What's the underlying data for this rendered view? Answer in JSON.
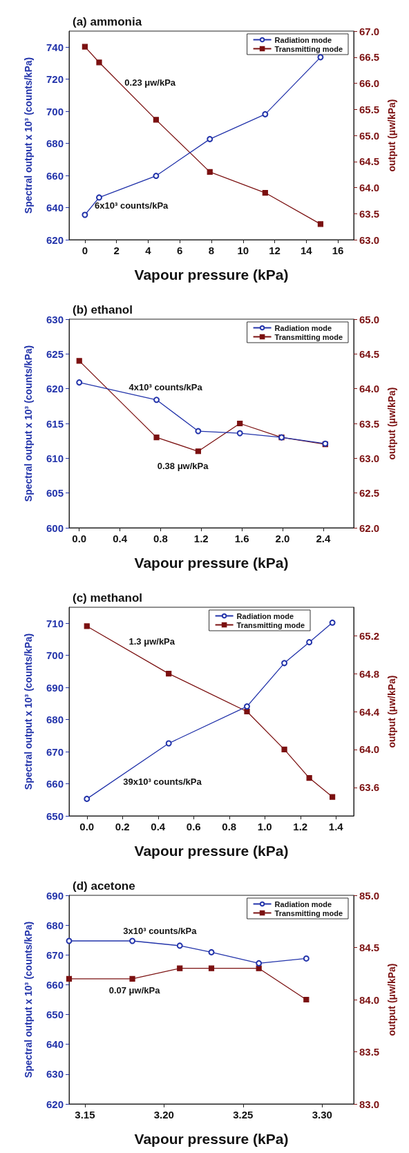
{
  "chart_data": [
    {
      "type": "line",
      "title": "(a) ammonia",
      "xlabel": "Vapour pressure (kPa)",
      "ylabel": "Spectral output x 10³ (counts/kPa)",
      "y2label": "output (μw/kPa)",
      "x": [
        0,
        0.9,
        4.5,
        7.9,
        11.4,
        14.9
      ],
      "series": [
        {
          "name": "Radiation mode",
          "color": "#2233aa",
          "marker": "circle",
          "values": [
            635.5,
            646.3,
            659.8,
            682.7,
            698.2,
            733.7
          ]
        },
        {
          "name": "Transmitting mode",
          "color": "#7b1010",
          "marker": "square",
          "axis": "y2",
          "values": [
            66.7,
            66.4,
            65.3,
            64.3,
            63.9,
            63.3
          ]
        }
      ],
      "xlim": [
        -1,
        17
      ],
      "xticks": [
        0,
        2,
        4,
        6,
        8,
        10,
        12,
        14,
        16
      ],
      "ylim": [
        620,
        750
      ],
      "yticks": [
        620,
        640,
        660,
        680,
        700,
        720,
        740
      ],
      "y2lim": [
        63,
        67
      ],
      "y2ticks": [
        {
          "value": 63,
          "label": "63.0"
        },
        63.5,
        {
          "value": 64,
          "label": "64.0"
        },
        64.5,
        {
          "value": 65,
          "label": "65.0"
        },
        65.5,
        {
          "value": 66,
          "label": "66.0"
        },
        66.5,
        {
          "value": 67,
          "label": "67.0"
        }
      ],
      "annotations": [
        "0.23 μw/kPa",
        "6x10³ counts/kPa"
      ],
      "legend": "top right"
    },
    {
      "type": "line",
      "title": "(b) ethanol",
      "xlabel": "Vapour pressure (kPa)",
      "ylabel": "Spectral output x 10³ (counts/kPa)",
      "y2label": "output (μw/kPa)",
      "x": [
        0,
        0.76,
        1.17,
        1.58,
        1.99,
        2.42
      ],
      "series": [
        {
          "name": "Radiation mode",
          "color": "#2233aa",
          "marker": "circle",
          "values": [
            620.9,
            618.4,
            613.9,
            613.6,
            613.0,
            612.1
          ]
        },
        {
          "name": "Transmitting mode",
          "color": "#7b1010",
          "marker": "square",
          "axis": "y2",
          "values": [
            64.4,
            63.3,
            63.1,
            63.5,
            63.3,
            63.2
          ]
        }
      ],
      "xlim": [
        -0.1,
        2.7
      ],
      "xticks": [
        {
          "value": 0,
          "label": "0.0"
        },
        0.4,
        0.8,
        1.2,
        1.6,
        {
          "value": 2,
          "label": "2.0"
        },
        2.4
      ],
      "ylim": [
        600,
        630
      ],
      "yticks": [
        600,
        605,
        610,
        615,
        620,
        625,
        630
      ],
      "y2lim": [
        62,
        65
      ],
      "y2ticks": [
        {
          "value": 62,
          "label": "62.0"
        },
        62.5,
        {
          "value": 63,
          "label": "63.0"
        },
        63.5,
        {
          "value": 64,
          "label": "64.0"
        },
        64.5,
        {
          "value": 65,
          "label": "65.0"
        }
      ],
      "annotations": [
        "4x10³ counts/kPa",
        "0.38 μw/kPa"
      ],
      "legend": "top right"
    },
    {
      "type": "line",
      "title": "(c) methanol",
      "xlabel": "Vapour pressure (kPa)",
      "ylabel": "Spectral output x 10³ (counts/kPa)",
      "y2label": "output (μw/kPa)",
      "x": [
        0,
        0.46,
        0.9,
        1.11,
        1.25,
        1.38
      ],
      "series": [
        {
          "name": "Radiation mode",
          "color": "#2233aa",
          "marker": "circle",
          "values": [
            655.3,
            672.6,
            684.1,
            697.6,
            704.1,
            710.2
          ]
        },
        {
          "name": "Transmitting mode",
          "color": "#7b1010",
          "marker": "square",
          "axis": "y2",
          "values": [
            65.3,
            64.8,
            64.4,
            64.0,
            63.7,
            63.5
          ]
        }
      ],
      "xlim": [
        -0.1,
        1.5
      ],
      "xticks": [
        {
          "value": 0,
          "label": "0.0"
        },
        0.2,
        0.4,
        0.6,
        0.8,
        {
          "value": 1,
          "label": "1.0"
        },
        1.2,
        1.4
      ],
      "ylim": [
        650,
        715
      ],
      "yticks": [
        650,
        660,
        670,
        680,
        690,
        700,
        710
      ],
      "y2lim": [
        63.3,
        65.5
      ],
      "y2ticks": [
        63.6,
        {
          "value": 64,
          "label": "64.0"
        },
        64.4,
        64.8,
        65.2
      ],
      "annotations": [
        "1.3 μw/kPa",
        "39x10³ counts/kPa"
      ],
      "legend": "top right"
    },
    {
      "type": "line",
      "title": "(d) acetone",
      "xlabel": "Vapour pressure (kPa)",
      "ylabel": "Spectral output x 10³ (counts/kPa)",
      "y2label": "output (μw/kPa)",
      "x": [
        3.14,
        3.18,
        3.21,
        3.23,
        3.26,
        3.29
      ],
      "series": [
        {
          "name": "Radiation mode",
          "color": "#2233aa",
          "marker": "circle",
          "values": [
            674.7,
            674.7,
            673.1,
            670.9,
            667.2,
            668.8
          ]
        },
        {
          "name": "Transmitting mode",
          "color": "#7b1010",
          "marker": "square",
          "axis": "y2",
          "values": [
            84.2,
            84.2,
            84.3,
            84.3,
            84.3,
            84.0
          ]
        }
      ],
      "xlim": [
        3.14,
        3.32
      ],
      "xticks": [
        3.15,
        {
          "value": 3.2,
          "label": "3.20"
        },
        3.25,
        {
          "value": 3.3,
          "label": "3.30"
        }
      ],
      "ylim": [
        620,
        690
      ],
      "yticks": [
        620,
        630,
        640,
        650,
        660,
        670,
        680,
        690
      ],
      "y2lim": [
        83,
        85
      ],
      "y2ticks": [
        {
          "value": 83,
          "label": "83.0"
        },
        83.5,
        {
          "value": 84,
          "label": "84.0"
        },
        84.5,
        {
          "value": 85,
          "label": "85.0"
        }
      ],
      "annotations": [
        "3x10³ counts/kPa",
        "0.07 μw/kPa"
      ],
      "legend": "top right"
    }
  ]
}
